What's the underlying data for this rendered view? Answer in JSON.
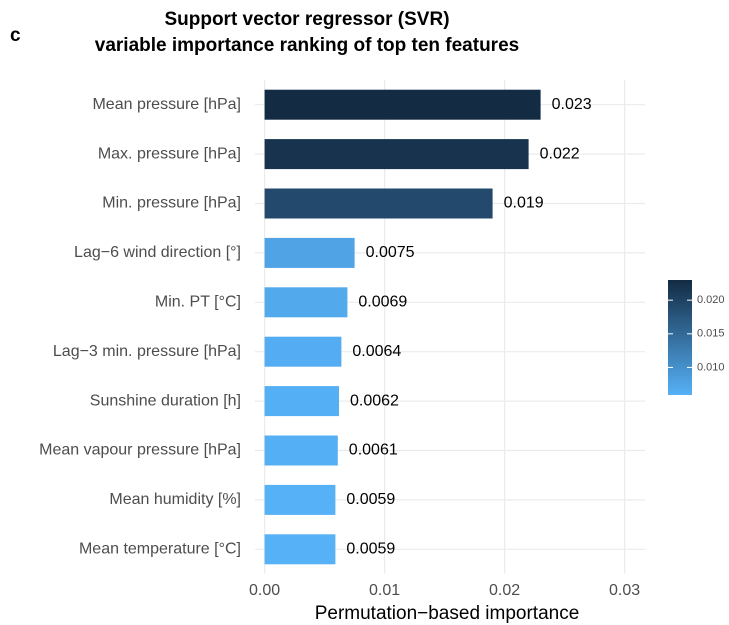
{
  "chart_data": {
    "type": "bar",
    "panel_label": "c",
    "title": "Support vector regressor (SVR)",
    "subtitle": "variable importance ranking of top ten features",
    "x_label": "Permutation−based importance",
    "categories": [
      "Mean pressure [hPa]",
      "Max. pressure [hPa]",
      "Min. pressure [hPa]",
      "Lag−6 wind direction [°]",
      "Min. PT [°C]",
      "Lag−3 min. pressure [hPa]",
      "Sunshine duration [h]",
      "Mean vapour pressure [hPa]",
      "Mean humidity [%]",
      "Mean temperature [°C]"
    ],
    "values": [
      0.023,
      0.022,
      0.019,
      0.0075,
      0.0069,
      0.0064,
      0.0062,
      0.0061,
      0.0059,
      0.0059
    ],
    "xlim": [
      -0.0008,
      0.0317
    ],
    "xticks": [
      {
        "value": 0,
        "label": "0.00"
      },
      0.01,
      0.02,
      0.03
    ],
    "grid": true,
    "color_scale": {
      "low": "#56B1F7",
      "high": "#132B43",
      "lim": [
        0.0059,
        0.023
      ],
      "ticks": [
        {
          "value": 0.01,
          "label": "0.010"
        },
        {
          "value": 0.015,
          "label": "0.015"
        },
        {
          "value": 0.02,
          "label": "0.020"
        }
      ]
    }
  }
}
